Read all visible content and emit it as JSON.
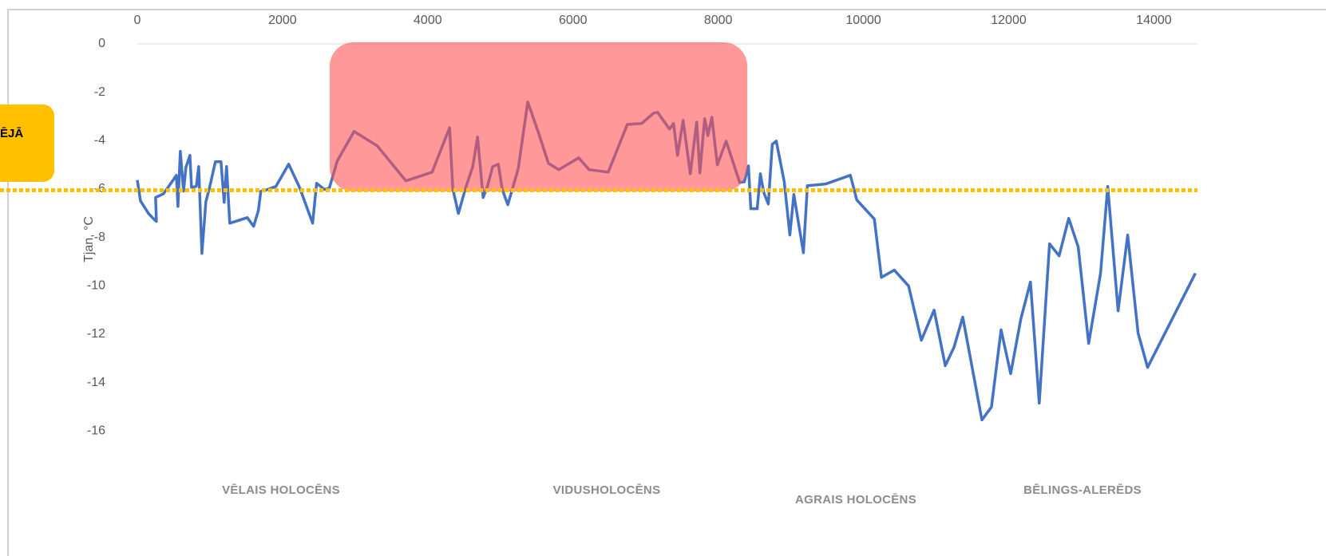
{
  "chart_data": {
    "type": "line",
    "y_label": "Tjan, °C",
    "callout": "ĒJĀ",
    "color": "#4472c4",
    "xlim": [
      0,
      14600
    ],
    "xticks": [
      0,
      2000,
      4000,
      6000,
      8000,
      10000,
      12000,
      14000
    ],
    "ylim": [
      -18,
      0
    ],
    "yticks": [
      0,
      -2,
      -4,
      -6,
      -8,
      -10,
      -12,
      -14,
      -16
    ],
    "reference_line": -6.05,
    "reference_color": "#ffc000",
    "highlight": {
      "x": [
        2650,
        8400
      ],
      "y": [
        -6.1,
        0
      ],
      "color": "#ff4d4d"
    },
    "periods": [
      "VĒLAIS HOLOCĒNS",
      "VIDUSHOLOCĒNS",
      "AGRAIS HOLOCĒNS",
      "BĒLINGS-ALERĒDS"
    ],
    "x": [
      0,
      44,
      154,
      241,
      263,
      252,
      362,
      494,
      538,
      560,
      593,
      637,
      670,
      724,
      746,
      812,
      845,
      889,
      944,
      988,
      1075,
      1152,
      1196,
      1229,
      1273,
      1514,
      1602,
      1668,
      1701,
      1756,
      1909,
      2085,
      2238,
      2414,
      2469,
      2579,
      2644,
      2754,
      2985,
      3303,
      3698,
      4060,
      4301,
      4345,
      4422,
      4521,
      4620,
      4686,
      4763,
      4818,
      4894,
      4971,
      5026,
      5102,
      5245,
      5377,
      5530,
      5662,
      5804,
      6079,
      6221,
      6485,
      6748,
      6946,
      7110,
      7165,
      7330,
      7385,
      7440,
      7517,
      7616,
      7703,
      7747,
      7813,
      7857,
      7912,
      7988,
      8109,
      8296,
      8360,
      8416,
      8449,
      8537,
      8581,
      8625,
      8690,
      8745,
      8800,
      8910,
      8987,
      9041,
      9173,
      9228,
      9480,
      9820,
      9908,
      10150,
      10248,
      10424,
      10622,
      10797,
      10973,
      11127,
      11247,
      11368,
      11632,
      11763,
      11895,
      12027,
      12168,
      12300,
      12421,
      12563,
      12695,
      12827,
      12958,
      13101,
      13265,
      13364,
      13507,
      13639,
      13782,
      13913,
      14571
    ],
    "values": [
      -5.63,
      -6.49,
      -7.01,
      -7.28,
      -7.34,
      -6.35,
      -6.19,
      -5.63,
      -5.43,
      -6.72,
      -4.44,
      -6.09,
      -5.1,
      -4.61,
      -5.93,
      -5.89,
      -5.07,
      -8.66,
      -6.52,
      -6.02,
      -4.87,
      -4.87,
      -6.55,
      -5.07,
      -7.41,
      -7.18,
      -7.54,
      -6.88,
      -6.09,
      -6.06,
      -5.89,
      -4.97,
      -5.96,
      -7.41,
      -5.76,
      -6.02,
      -5.96,
      -4.84,
      -3.62,
      -4.21,
      -5.66,
      -5.3,
      -3.46,
      -5.99,
      -7.01,
      -5.96,
      -5.07,
      -3.85,
      -6.35,
      -5.93,
      -5.07,
      -4.97,
      -6.02,
      -6.65,
      -5.17,
      -2.4,
      -3.72,
      -4.94,
      -5.2,
      -4.71,
      -5.2,
      -5.3,
      -3.33,
      -3.29,
      -2.86,
      -2.83,
      -3.52,
      -3.29,
      -4.61,
      -3.16,
      -5.37,
      -3.23,
      -5.33,
      -3.09,
      -3.79,
      -3.03,
      -5.0,
      -4.02,
      -5.73,
      -5.7,
      -5.04,
      -6.81,
      -6.81,
      -5.37,
      -6.12,
      -6.62,
      -4.15,
      -4.02,
      -5.7,
      -7.9,
      -6.22,
      -8.63,
      -5.86,
      -5.79,
      -5.43,
      -6.45,
      -7.24,
      -9.65,
      -9.35,
      -10.01,
      -12.25,
      -11.0,
      -13.3,
      -12.54,
      -11.29,
      -15.54,
      -15.01,
      -11.82,
      -13.63,
      -11.36,
      -9.84,
      -14.85,
      -8.26,
      -8.76,
      -7.21,
      -8.39,
      -12.38,
      -9.48,
      -5.89,
      -11.03,
      -7.9,
      -11.95,
      -13.37,
      -9.48
    ]
  }
}
